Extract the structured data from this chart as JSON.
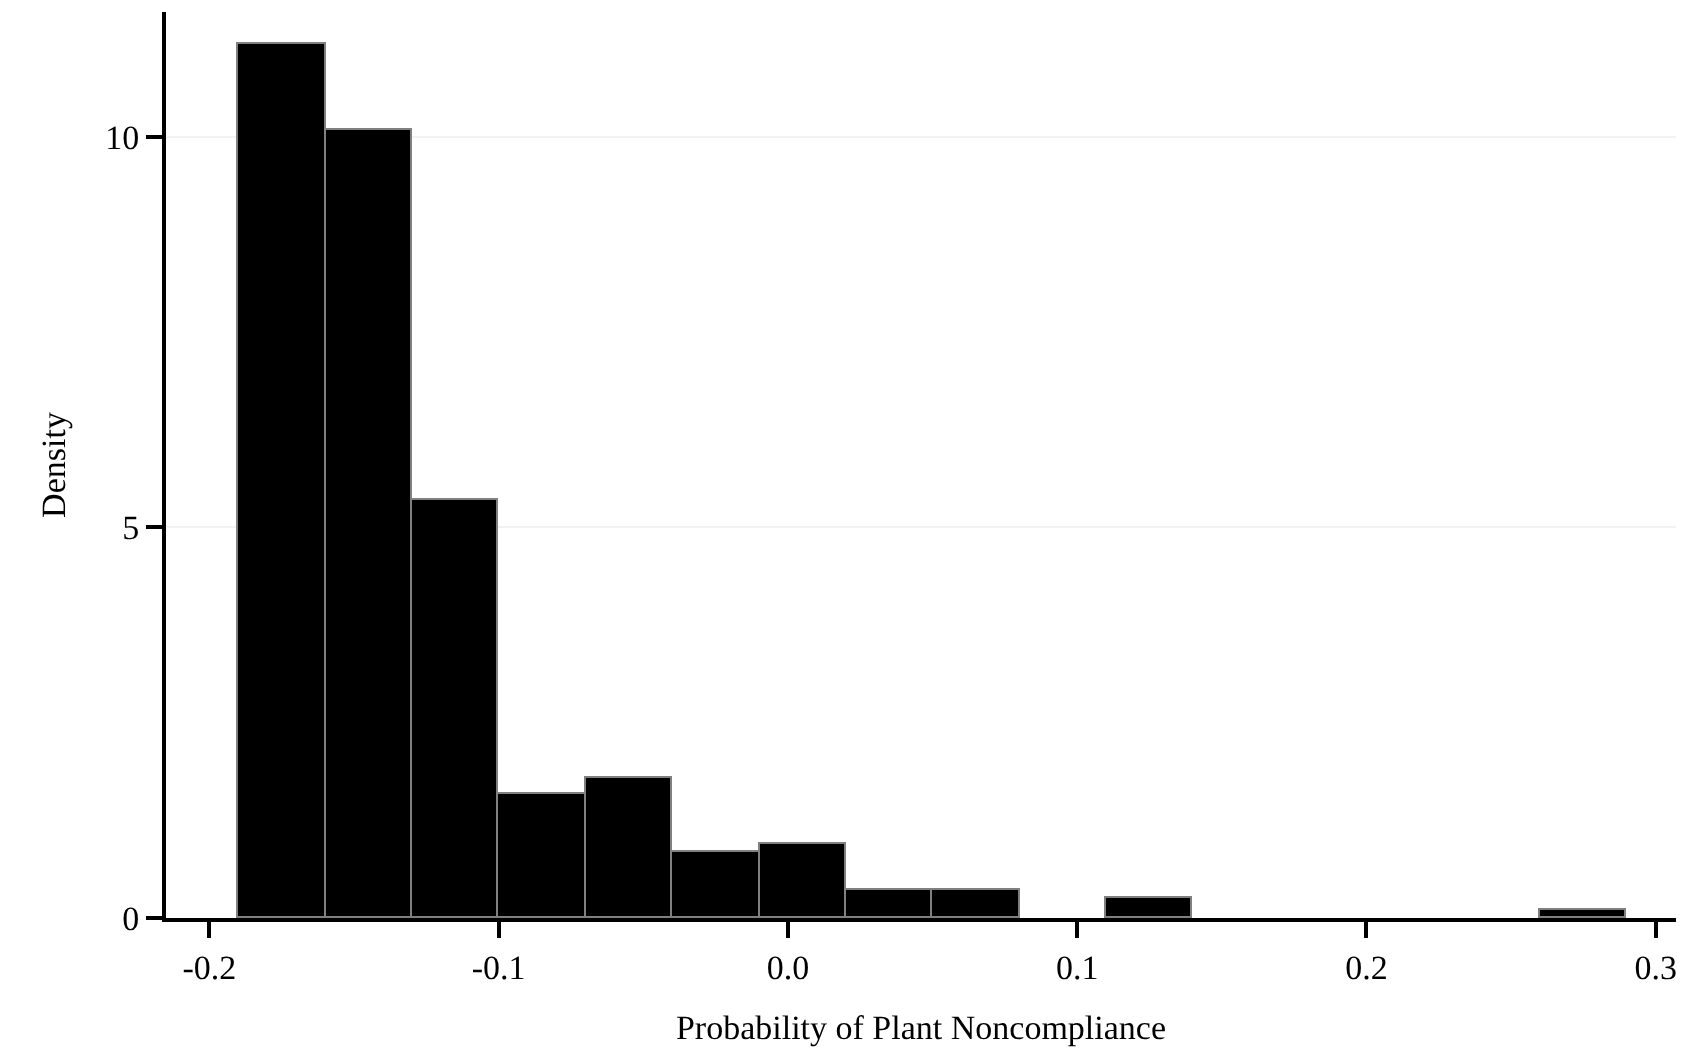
{
  "chart_data": {
    "type": "histogram",
    "xlabel": "Probability of Plant Noncompliance",
    "ylabel": "Density",
    "bins": [
      -0.19,
      -0.16,
      -0.13,
      -0.1,
      -0.07,
      -0.04,
      -0.01,
      0.02,
      0.05,
      0.08,
      0.11,
      0.14,
      0.17,
      0.2,
      0.23,
      0.26,
      0.29
    ],
    "values": [
      11.2,
      10.1,
      5.35,
      1.6,
      1.8,
      0.85,
      0.95,
      0.35,
      0.35,
      0,
      0.25,
      0,
      0,
      0,
      0,
      0.1
    ],
    "color": "#000000",
    "xlim": [
      -0.215,
      0.307
    ],
    "ylim": [
      0,
      11.6
    ],
    "xticks": [
      -0.2,
      -0.1,
      {
        "value": 0,
        "label": "0.0"
      },
      0.1,
      0.2,
      0.3
    ],
    "yticks": [
      0,
      5,
      10
    ],
    "grid": "y"
  }
}
